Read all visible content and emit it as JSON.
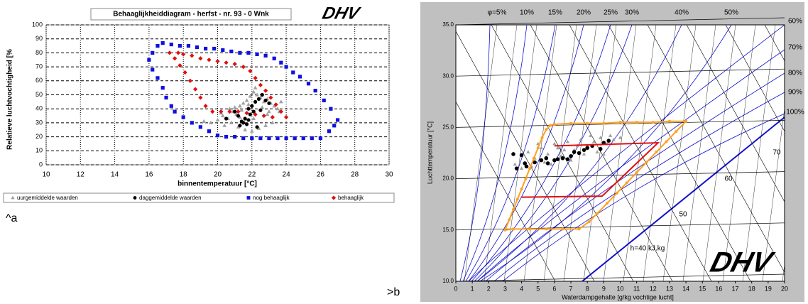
{
  "labels": [
    "^a",
    ">b"
  ],
  "logo": "DHV",
  "chart_data": [
    {
      "type": "scatter",
      "title": "Behaaglijkheiddiagram - herfst - nr. 93 - 0 Wnk",
      "xlabel": "binnentemperatuur [°C]",
      "ylabel": "Relatieve luchtvochtigheid [%",
      "xlim": [
        10,
        30
      ],
      "xticks": [
        10,
        12,
        14,
        16,
        18,
        20,
        22,
        24,
        26,
        28,
        30
      ],
      "ylim": [
        0,
        100
      ],
      "yticks": [
        0,
        10,
        20,
        30,
        40,
        50,
        60,
        70,
        80,
        90,
        100
      ],
      "grid": true,
      "legend": "bottom",
      "series": [
        {
          "name": "uurgemiddelde waarden",
          "color": "#a0a0a0",
          "marker": "triangle",
          "mode": "markers",
          "x": [
            19.2,
            19.6,
            20.0,
            20.3,
            20.6,
            20.9,
            21.1,
            21.3,
            21.5,
            21.7,
            21.9,
            22.1,
            22.3,
            22.5,
            22.7,
            22.9,
            23.1,
            23.3,
            23.5,
            23.7,
            20.4,
            20.8,
            21.2,
            21.6,
            22.0,
            22.4,
            22.8,
            23.2,
            21.0,
            21.4,
            21.8,
            22.2,
            22.6,
            23.0,
            20.2,
            20.7,
            21.3,
            22.1,
            22.9,
            23.6
          ],
          "y": [
            31,
            30,
            32,
            35,
            33,
            38,
            36,
            42,
            44,
            46,
            49,
            52,
            50,
            48,
            45,
            47,
            44,
            42,
            40,
            45,
            28,
            30,
            27,
            25,
            24,
            26,
            28,
            30,
            41,
            39,
            43,
            55,
            41,
            38,
            37,
            40,
            34,
            33,
            36,
            38
          ]
        },
        {
          "name": "daggemiddelde waarden",
          "color": "#000000",
          "marker": "circle",
          "mode": "markers",
          "x": [
            21.0,
            21.2,
            21.4,
            21.6,
            21.8,
            22.0,
            22.2,
            22.4,
            22.6,
            22.8,
            21.9,
            21.7,
            22.3,
            20.5,
            21.5,
            23.0,
            22.1,
            21.8,
            22.5,
            21.3
          ],
          "y": [
            38,
            35,
            31,
            33,
            40,
            42,
            45,
            47,
            50,
            46,
            36,
            29,
            27,
            33,
            30,
            44,
            38,
            32,
            39,
            28
          ]
        },
        {
          "name": "nog behaaglijk",
          "color": "#1010e0",
          "marker": "square",
          "mode": "markers",
          "x": [
            16.0,
            16.2,
            16.5,
            16.8,
            17.3,
            17.8,
            18.3,
            18.8,
            19.3,
            19.8,
            20.3,
            20.8,
            21.3,
            21.8,
            22.3,
            22.8,
            23.3,
            23.7,
            24.0,
            24.4,
            24.8,
            25.3,
            25.7,
            26.2,
            26.6,
            27.0,
            26.8,
            26.5,
            26.0,
            25.5,
            25.0,
            24.5,
            24.0,
            23.5,
            23.0,
            22.5,
            22.0,
            21.5,
            21.0,
            20.5,
            20.0,
            19.5,
            19.0,
            18.5,
            18.0,
            17.5,
            17.3,
            17.0,
            16.8,
            16.5,
            16.2
          ],
          "y": [
            75,
            80,
            85,
            87,
            86,
            85,
            85,
            84,
            83,
            83,
            82,
            81,
            80,
            80,
            79,
            78,
            76,
            73,
            70,
            66,
            63,
            58,
            53,
            46,
            40,
            32,
            28,
            24,
            19,
            19,
            19,
            19,
            19,
            19,
            19,
            19,
            19,
            19,
            20,
            20,
            21,
            24,
            27,
            30,
            34,
            38,
            42,
            48,
            55,
            62,
            68
          ]
        },
        {
          "name": "behaaglijk",
          "color": "#e01010",
          "marker": "diamond",
          "mode": "markers",
          "x": [
            17.2,
            17.5,
            17.8,
            18.1,
            18.4,
            18.7,
            19.0,
            19.3,
            19.7,
            20.2,
            20.7,
            21.2,
            21.7,
            22.2,
            22.7,
            23.2,
            24.0,
            23.7,
            23.4,
            23.1,
            22.8,
            22.5,
            22.2,
            21.9,
            21.5,
            21.0,
            20.5,
            20.0,
            19.5,
            19.0,
            18.5,
            18.0,
            17.7
          ],
          "y": [
            80,
            76,
            71,
            66,
            60,
            54,
            48,
            42,
            38,
            38,
            38,
            38,
            37,
            36,
            35,
            34,
            34,
            38,
            43,
            48,
            53,
            57,
            62,
            67,
            70,
            72,
            73,
            74,
            75,
            76,
            78,
            79,
            80
          ]
        }
      ]
    },
    {
      "type": "scatter",
      "xlabel": "Waterdampgehalte [g/kg vochtige lucht]",
      "ylabel": "Luchttemperatuur [°C]",
      "xlim": [
        0,
        20
      ],
      "xticks": [
        0,
        1,
        2,
        3,
        4,
        5,
        6,
        7,
        8,
        9,
        10,
        11,
        12,
        13,
        14,
        15,
        16,
        17,
        18,
        19,
        20
      ],
      "ylim": [
        10,
        35
      ],
      "yticks": [
        {
          "value": 10,
          "label": "10.0"
        },
        {
          "value": 15,
          "label": "15.0"
        },
        {
          "value": 20,
          "label": "20.0"
        },
        {
          "value": 25,
          "label": "25.0"
        },
        {
          "value": 30,
          "label": "30.0"
        },
        {
          "value": 35,
          "label": "35.0"
        }
      ],
      "grid": true,
      "annotations": [
        "φ=5%",
        "10%",
        "15%",
        "20%",
        "25%",
        "30%",
        "40%",
        "50%",
        "60%",
        "70%",
        "80%",
        "90%",
        "100%",
        "h=40 kJ.kg",
        "50",
        "60",
        "70"
      ],
      "series": [
        {
          "color": "#a0a0a0",
          "marker": "triangle",
          "mode": "markers",
          "x": [
            3.6,
            4.0,
            4.4,
            4.8,
            5.2,
            5.6,
            6.0,
            6.4,
            6.8,
            7.2,
            7.6,
            8.0,
            8.4,
            8.8,
            9.2,
            9.6,
            10.0,
            4.6,
            5.4,
            6.2,
            7.0,
            7.8,
            8.6,
            9.4,
            5.0,
            5.8,
            6.6,
            7.4,
            8.2,
            9.0
          ],
          "y": [
            21.4,
            21.0,
            22.6,
            22.0,
            23.0,
            22.4,
            23.4,
            22.2,
            23.6,
            22.8,
            23.8,
            23.2,
            23.6,
            24.0,
            23.4,
            23.8,
            24.0,
            21.2,
            21.6,
            23.0,
            21.8,
            22.4,
            22.6,
            24.2,
            23.4,
            21.4,
            22.8,
            23.2,
            24.2,
            22.4
          ]
        },
        {
          "color": "#000000",
          "marker": "circle",
          "mode": "markers",
          "x": [
            3.5,
            4.0,
            4.2,
            4.3,
            4.8,
            5.2,
            5.6,
            6.0,
            6.5,
            7.0,
            7.2,
            7.5,
            8.0,
            8.3,
            8.8,
            9.0,
            9.3,
            5.5,
            6.2,
            7.8,
            3.7,
            6.8
          ],
          "y": [
            22.4,
            22.3,
            21.5,
            21.2,
            21.6,
            21.8,
            21.5,
            21.8,
            22.0,
            22.2,
            22.6,
            22.5,
            23.0,
            23.2,
            22.9,
            23.5,
            23.7,
            22.0,
            21.9,
            22.8,
            21.0,
            21.9
          ]
        },
        {
          "color": "#ffa020",
          "marker": "circle",
          "mode": "lines+markers",
          "x": [
            3.0,
            3.25,
            3.5,
            3.75,
            4.0,
            4.25,
            4.5,
            4.75,
            5.0,
            5.25,
            5.5,
            5.75,
            6.0,
            7.0,
            8.0,
            9.0,
            10.0,
            11.0,
            12.0,
            13.0,
            14.0,
            13.4,
            12.8,
            12.2,
            11.6,
            11.0,
            10.4,
            9.8,
            9.2,
            8.6,
            8.1,
            7.5,
            6.5,
            5.5,
            4.5,
            3.5,
            3.0
          ],
          "y": [
            15.0,
            16.0,
            17.0,
            18.0,
            19.0,
            20.0,
            21.0,
            22.0,
            23.0,
            24.0,
            24.8,
            25.2,
            25.3,
            25.4,
            25.4,
            25.4,
            25.5,
            25.5,
            25.5,
            25.6,
            25.6,
            24.6,
            23.6,
            22.6,
            21.6,
            20.6,
            19.6,
            18.6,
            17.6,
            16.6,
            15.8,
            15.1,
            15.1,
            15.1,
            15.1,
            15.1,
            15.0
          ]
        },
        {
          "color": "#e01010",
          "mode": "lines",
          "x": [
            4.0,
            8.9,
            12.3,
            6.0
          ],
          "y": [
            18.2,
            18.3,
            23.5,
            23.2
          ]
        }
      ]
    }
  ]
}
